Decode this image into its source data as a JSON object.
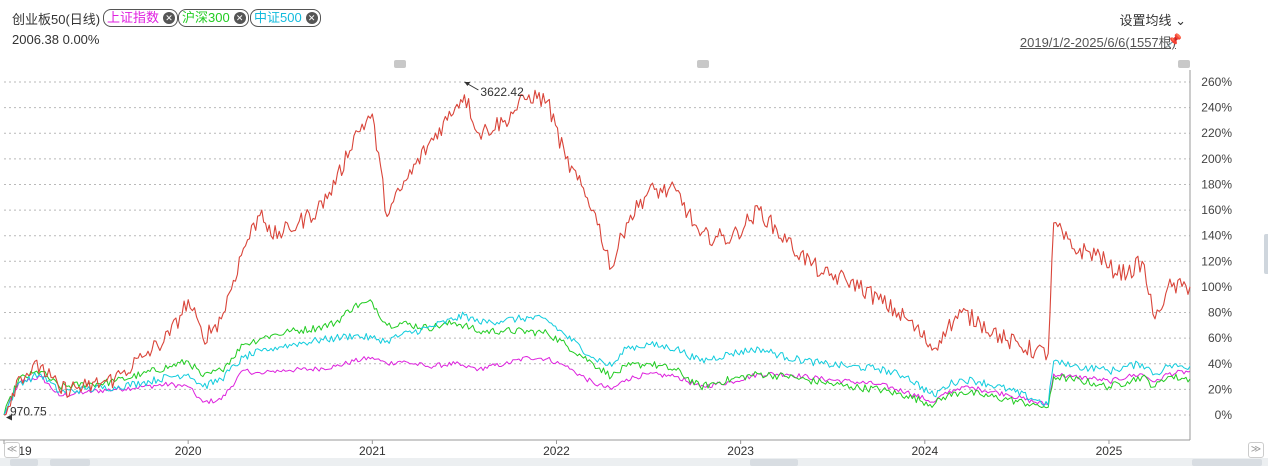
{
  "header": {
    "title": "创业板50(日线)",
    "value_text": "2006.38 0.00%",
    "ma_setting_label": "设置均线",
    "date_range": "2019/1/2-2025/6/6(1557根)"
  },
  "compare_chips": [
    {
      "label": "上证指数",
      "color": "#e020e0"
    },
    {
      "label": "沪深300",
      "color": "#22cc22"
    },
    {
      "label": "中证500",
      "color": "#11bbdd"
    }
  ],
  "annotations": {
    "high_label": "3622.42",
    "low_label": "970.75"
  },
  "chart_data": {
    "type": "line",
    "title": "创业板50(日线)",
    "ylim": [
      -8,
      268
    ],
    "y_ticks": [
      "0%",
      "20%",
      "40%",
      "60%",
      "80%",
      "100%",
      "120%",
      "140%",
      "160%",
      "180%",
      "200%",
      "220%",
      "240%",
      "260%"
    ],
    "y_tick_values": [
      0,
      20,
      40,
      60,
      80,
      100,
      120,
      140,
      160,
      180,
      200,
      220,
      240,
      260
    ],
    "x_ticks": [
      "2019",
      "2020",
      "2021",
      "2022",
      "2023",
      "2024",
      "2025"
    ],
    "x_tick_values": [
      2019.0,
      2020.0,
      2021.0,
      2022.0,
      2023.0,
      2024.0,
      2025.0
    ],
    "xlim": [
      2019.0,
      2025.44
    ],
    "grid": true,
    "series": [
      {
        "name": "创业板50",
        "color": "#d9453a",
        "x": [
          2019.0,
          2019.08,
          2019.2,
          2019.3,
          2019.45,
          2019.6,
          2019.75,
          2019.9,
          2020.0,
          2020.08,
          2020.18,
          2020.3,
          2020.4,
          2020.45,
          2020.55,
          2020.7,
          2020.8,
          2020.9,
          2021.0,
          2021.08,
          2021.15,
          2021.3,
          2021.45,
          2021.5,
          2021.58,
          2021.72,
          2021.85,
          2021.95,
          2022.05,
          2022.2,
          2022.3,
          2022.38,
          2022.5,
          2022.65,
          2022.78,
          2022.95,
          2023.1,
          2023.25,
          2023.45,
          2023.6,
          2023.75,
          2023.9,
          2024.05,
          2024.1,
          2024.2,
          2024.3,
          2024.45,
          2024.6,
          2024.67,
          2024.7,
          2024.8,
          2024.95,
          2025.0,
          2025.1,
          2025.18,
          2025.25,
          2025.32,
          2025.44
        ],
        "values": [
          0,
          30,
          38,
          20,
          22,
          28,
          45,
          62,
          90,
          60,
          75,
          130,
          160,
          140,
          145,
          160,
          180,
          218,
          235,
          155,
          175,
          210,
          240,
          250,
          220,
          230,
          250,
          245,
          200,
          160,
          115,
          150,
          175,
          175,
          140,
          138,
          160,
          135,
          110,
          105,
          90,
          75,
          52,
          65,
          80,
          72,
          58,
          50,
          48,
          150,
          130,
          125,
          115,
          110,
          120,
          75,
          100,
          100
        ]
      },
      {
        "name": "沪深300",
        "color": "#22cc22",
        "x": [
          2019.0,
          2019.08,
          2019.2,
          2019.3,
          2019.45,
          2019.6,
          2019.75,
          2019.9,
          2020.0,
          2020.08,
          2020.18,
          2020.3,
          2020.4,
          2020.45,
          2020.55,
          2020.7,
          2020.8,
          2020.9,
          2021.0,
          2021.08,
          2021.15,
          2021.3,
          2021.45,
          2021.5,
          2021.58,
          2021.72,
          2021.85,
          2021.95,
          2022.05,
          2022.2,
          2022.3,
          2022.38,
          2022.5,
          2022.65,
          2022.78,
          2022.95,
          2023.1,
          2023.25,
          2023.45,
          2023.6,
          2023.75,
          2023.9,
          2024.05,
          2024.1,
          2024.2,
          2024.3,
          2024.45,
          2024.6,
          2024.67,
          2024.7,
          2024.8,
          2024.95,
          2025.0,
          2025.1,
          2025.18,
          2025.25,
          2025.32,
          2025.44
        ],
        "values": [
          0,
          28,
          34,
          22,
          24,
          26,
          32,
          38,
          42,
          30,
          35,
          55,
          60,
          62,
          65,
          68,
          72,
          85,
          88,
          70,
          72,
          68,
          72,
          70,
          65,
          66,
          65,
          64,
          55,
          40,
          30,
          38,
          40,
          35,
          22,
          28,
          32,
          30,
          25,
          22,
          20,
          15,
          8,
          14,
          18,
          16,
          12,
          8,
          6,
          30,
          28,
          24,
          22,
          26,
          30,
          22,
          30,
          28
        ]
      },
      {
        "name": "中证500",
        "color": "#11ccdd",
        "x": [
          2019.0,
          2019.08,
          2019.2,
          2019.3,
          2019.45,
          2019.6,
          2019.75,
          2019.9,
          2020.0,
          2020.08,
          2020.18,
          2020.3,
          2020.4,
          2020.45,
          2020.55,
          2020.7,
          2020.8,
          2020.9,
          2021.0,
          2021.08,
          2021.15,
          2021.3,
          2021.45,
          2021.5,
          2021.58,
          2021.72,
          2021.85,
          2021.95,
          2022.05,
          2022.2,
          2022.3,
          2022.38,
          2022.5,
          2022.65,
          2022.78,
          2022.95,
          2023.1,
          2023.25,
          2023.45,
          2023.6,
          2023.75,
          2023.9,
          2024.05,
          2024.1,
          2024.2,
          2024.3,
          2024.45,
          2024.6,
          2024.67,
          2024.7,
          2024.8,
          2024.95,
          2025.0,
          2025.1,
          2025.18,
          2025.25,
          2025.32,
          2025.44
        ],
        "values": [
          0,
          25,
          32,
          18,
          20,
          22,
          25,
          30,
          32,
          22,
          28,
          45,
          50,
          52,
          55,
          58,
          60,
          62,
          60,
          58,
          62,
          68,
          75,
          78,
          72,
          74,
          76,
          74,
          62,
          45,
          38,
          52,
          55,
          52,
          42,
          48,
          52,
          45,
          40,
          38,
          36,
          30,
          15,
          22,
          28,
          26,
          20,
          12,
          8,
          42,
          38,
          36,
          34,
          38,
          40,
          32,
          38,
          38
        ]
      },
      {
        "name": "上证指数",
        "color": "#dd22dd",
        "x": [
          2019.0,
          2019.08,
          2019.2,
          2019.3,
          2019.45,
          2019.6,
          2019.75,
          2019.9,
          2020.0,
          2020.08,
          2020.18,
          2020.3,
          2020.4,
          2020.45,
          2020.55,
          2020.7,
          2020.8,
          2020.9,
          2021.0,
          2021.08,
          2021.15,
          2021.3,
          2021.45,
          2021.5,
          2021.58,
          2021.72,
          2021.85,
          2021.95,
          2022.05,
          2022.2,
          2022.3,
          2022.38,
          2022.5,
          2022.65,
          2022.78,
          2022.95,
          2023.1,
          2023.25,
          2023.45,
          2023.6,
          2023.75,
          2023.9,
          2024.05,
          2024.1,
          2024.2,
          2024.3,
          2024.45,
          2024.6,
          2024.67,
          2024.7,
          2024.8,
          2024.95,
          2025.0,
          2025.1,
          2025.18,
          2025.25,
          2025.32,
          2025.44
        ],
        "values": [
          0,
          25,
          30,
          15,
          18,
          20,
          22,
          24,
          22,
          10,
          12,
          35,
          32,
          34,
          35,
          36,
          38,
          42,
          45,
          40,
          42,
          38,
          40,
          38,
          36,
          40,
          45,
          44,
          38,
          25,
          20,
          28,
          32,
          30,
          22,
          26,
          32,
          32,
          28,
          26,
          24,
          18,
          10,
          16,
          22,
          20,
          16,
          10,
          8,
          32,
          30,
          28,
          26,
          30,
          32,
          26,
          32,
          34
        ]
      }
    ]
  }
}
